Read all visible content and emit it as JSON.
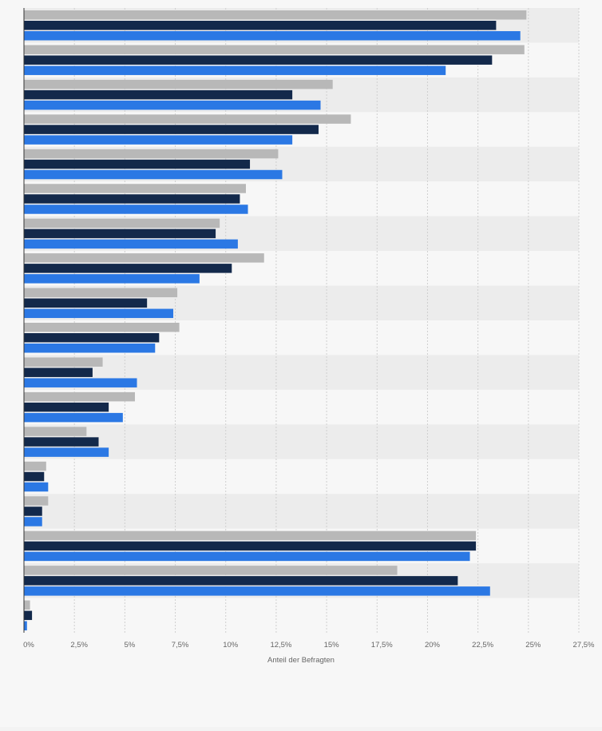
{
  "chart_data": {
    "type": "bar",
    "orientation": "horizontal",
    "xlabel": "Anteil der Befragten",
    "xlim": [
      0,
      27.5
    ],
    "x_ticks": [
      "0%",
      "2,5%",
      "5%",
      "7,5%",
      "10%",
      "12,5%",
      "15%",
      "17,5%",
      "20%",
      "22,5%",
      "25%",
      "27,5%"
    ],
    "grid": true,
    "legend": "none",
    "colors": [
      "#b8b8b8",
      "#13294b",
      "#2b78e4"
    ],
    "series": [
      {
        "values": [
          24.9,
          24.8,
          15.3,
          16.2,
          12.6,
          11.0,
          9.7,
          11.9,
          7.6,
          7.7,
          3.9,
          5.5,
          3.1,
          1.1,
          1.2,
          22.4,
          18.5,
          0.3
        ]
      },
      {
        "values": [
          23.4,
          23.2,
          13.3,
          14.6,
          11.2,
          10.7,
          9.5,
          10.3,
          6.1,
          6.7,
          3.4,
          4.2,
          3.7,
          1.0,
          0.9,
          22.4,
          21.5,
          0.4
        ]
      },
      {
        "values": [
          24.6,
          20.9,
          14.7,
          13.3,
          12.8,
          11.1,
          10.6,
          8.7,
          7.4,
          6.5,
          5.6,
          4.9,
          4.2,
          1.2,
          0.9,
          22.1,
          23.1,
          0.15
        ]
      }
    ]
  }
}
